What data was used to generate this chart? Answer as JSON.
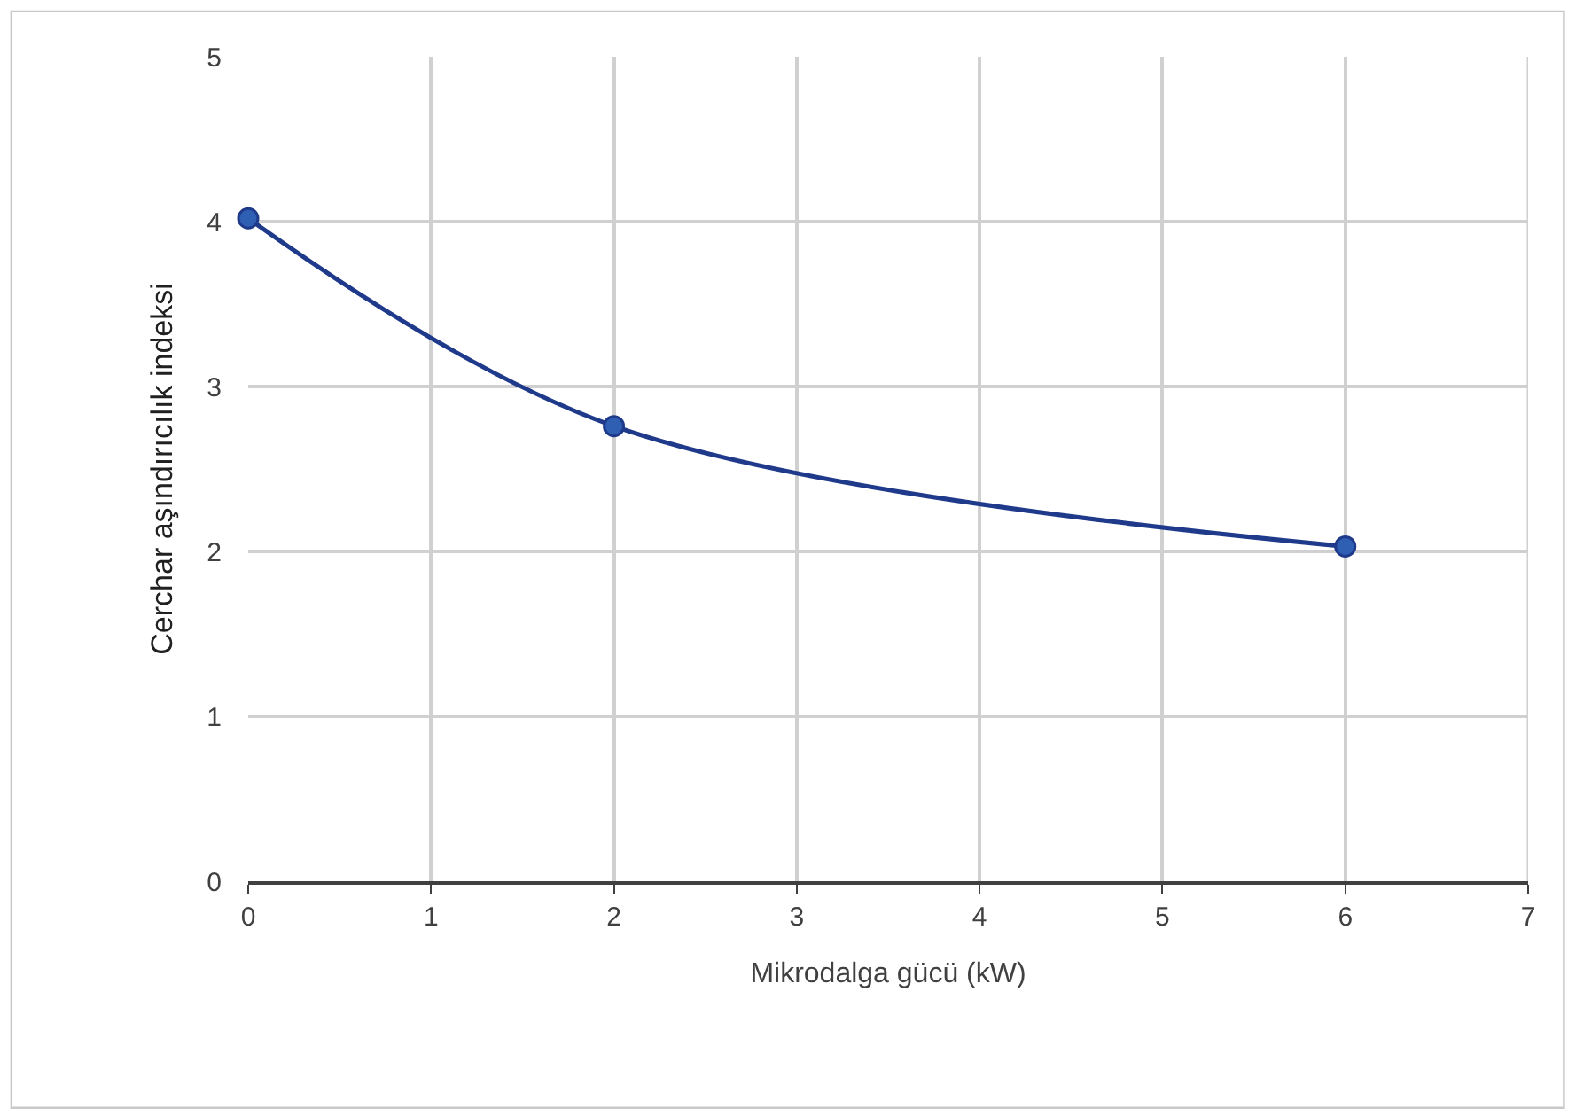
{
  "chart_data": {
    "type": "line",
    "xlabel": "Mikrodalga gücü (kW)",
    "ylabel": "Cerchar aşındırıcılık indeksi",
    "x": [
      0,
      2,
      6
    ],
    "series": [
      {
        "color": "#1f3a8a",
        "values": [
          4.02,
          2.76,
          2.03
        ]
      }
    ],
    "xlim": [
      0,
      7
    ],
    "xticks": [
      0,
      1,
      2,
      3,
      4,
      5,
      6,
      7
    ],
    "ylim": [
      0,
      5
    ],
    "yticks": [
      0,
      1,
      2,
      3,
      4,
      5
    ],
    "grid": true,
    "marker": "circle",
    "line_style": "solid"
  }
}
